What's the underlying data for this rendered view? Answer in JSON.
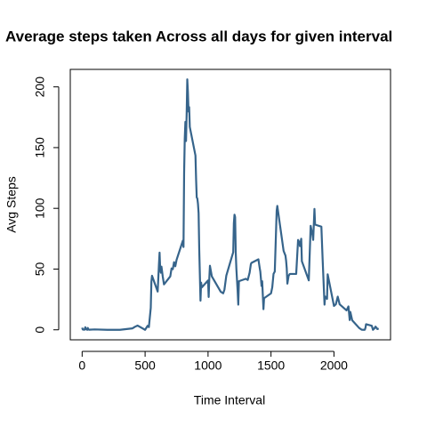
{
  "chart_data": {
    "type": "line",
    "title": "Average steps taken Across all days for given interval",
    "x_label": "Time Interval",
    "y_label": "Avg Steps",
    "x": [
      0,
      5,
      10,
      15,
      20,
      25,
      30,
      35,
      40,
      45,
      50,
      55,
      100,
      200,
      300,
      400,
      420,
      440,
      500,
      520,
      530,
      545,
      550,
      555,
      600,
      610,
      615,
      620,
      625,
      630,
      640,
      650,
      700,
      710,
      720,
      730,
      740,
      750,
      800,
      805,
      810,
      815,
      820,
      825,
      830,
      835,
      840,
      845,
      850,
      855,
      900,
      905,
      910,
      915,
      920,
      925,
      930,
      935,
      940,
      945,
      950,
      1000,
      1005,
      1010,
      1015,
      1030,
      1100,
      1120,
      1130,
      1145,
      1200,
      1205,
      1210,
      1215,
      1220,
      1225,
      1235,
      1240,
      1245,
      1300,
      1315,
      1330,
      1340,
      1345,
      1400,
      1410,
      1415,
      1425,
      1430,
      1440,
      1445,
      1500,
      1510,
      1520,
      1530,
      1545,
      1550,
      1600,
      1615,
      1620,
      1625,
      1630,
      1640,
      1650,
      1700,
      1715,
      1725,
      1730,
      1740,
      1745,
      1800,
      1815,
      1830,
      1835,
      1845,
      1850,
      1900,
      1910,
      1925,
      1930,
      1945,
      1950,
      2000,
      2015,
      2030,
      2045,
      2100,
      2115,
      2125,
      2130,
      2145,
      2200,
      2220,
      2240,
      2245,
      2250,
      2255,
      2300,
      2310,
      2320,
      2330,
      2345,
      2355
    ],
    "series": [
      {
        "name": "Avg Steps",
        "color": "#36648B",
        "values": [
          1.7,
          0.3,
          0.1,
          0.2,
          0.1,
          2.1,
          0.5,
          0.9,
          0,
          1.5,
          0.3,
          0.1,
          0.3,
          0,
          0,
          1.2,
          2.5,
          3.5,
          0,
          3.3,
          2.2,
          18,
          39.5,
          44.5,
          31.5,
          53.8,
          63.5,
          49.9,
          47,
          52,
          44,
          37.4,
          44,
          50.5,
          49.9,
          55.7,
          52.3,
          57.6,
          73.4,
          68.2,
          129.4,
          157.5,
          171.2,
          155.4,
          177.3,
          206.2,
          195.9,
          179.6,
          183.4,
          167,
          143.5,
          124,
          109,
          108,
          103.7,
          96,
          66,
          45,
          24,
          38.8,
          34.9,
          40.6,
          27,
          42.4,
          52.7,
          44,
          31.4,
          30,
          33,
          44.6,
          63.9,
          87.7,
          94.8,
          92.8,
          63.4,
          50,
          32,
          20.7,
          40,
          42,
          41,
          47,
          54,
          55.1,
          58,
          51,
          47.9,
          36,
          40,
          17,
          26,
          30,
          35,
          46,
          48,
          98,
          102,
          65,
          61,
          56.8,
          50.6,
          38,
          44.5,
          46,
          46,
          74,
          72,
          68.9,
          75,
          56.5,
          40.7,
          85.6,
          77.7,
          74,
          99.5,
          86.6,
          84.9,
          58,
          20.7,
          27.4,
          25.5,
          45.7,
          19.6,
          21,
          27.3,
          21,
          16,
          19.2,
          8,
          14.7,
          7.8,
          1.5,
          0.1,
          0,
          0.1,
          1.6,
          4.6,
          3.3,
          0,
          1,
          2.6,
          0.6,
          1.1
        ]
      }
    ],
    "xlim": [
      -94.2,
      2449.2
    ],
    "xticks": [
      0,
      500,
      1000,
      1500,
      2000
    ],
    "ylim": [
      -8.25,
      214.4
    ],
    "yticks": [
      0,
      50,
      100,
      150,
      200
    ]
  }
}
